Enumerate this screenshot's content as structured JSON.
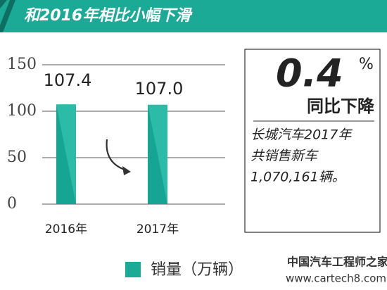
{
  "chart_data": {
    "type": "bar",
    "title": "和2016年相比小幅下滑",
    "categories": [
      "2016年",
      "2017年"
    ],
    "series": [
      {
        "name": "销量（万辆）",
        "color": "#1aaa96",
        "values": [
          107.4,
          107.0
        ],
        "value_labels": [
          "107.4",
          "107.0"
        ]
      }
    ],
    "ylim": [
      0,
      150
    ],
    "yticks": [
      0,
      50,
      100,
      150
    ],
    "grid": true,
    "annotations": {
      "change": "0.4",
      "unit": "%",
      "change_label": "同比下降",
      "note_lines": [
        "长城汽车2017年",
        "共销售新车",
        "1,070,161辆。"
      ]
    },
    "watermark": [
      "中国汽车工程师之家",
      "www.cartech8.com"
    ]
  }
}
